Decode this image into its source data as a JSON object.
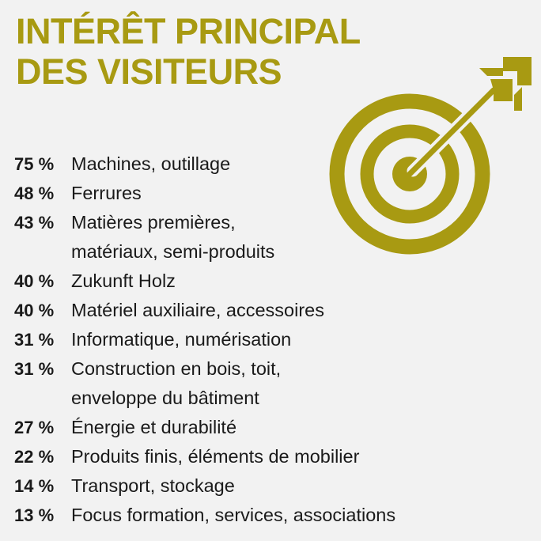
{
  "title": {
    "lines": [
      "INTÉRÊT PRINCIPAL",
      "DES VISITEURS"
    ],
    "color": "#a89a12"
  },
  "icon": "target-arrow-icon",
  "accent_color": "#a89a12",
  "chart_data": {
    "type": "table",
    "title": "INTÉRÊT PRINCIPAL DES VISITEURS",
    "unit": "%",
    "rows": [
      {
        "value": 75,
        "pct_label": "75 %",
        "lines": [
          "Machines, outillage"
        ]
      },
      {
        "value": 48,
        "pct_label": "48 %",
        "lines": [
          "Ferrures"
        ]
      },
      {
        "value": 43,
        "pct_label": "43 %",
        "lines": [
          "Matières premières,",
          "matériaux, semi-produits"
        ]
      },
      {
        "value": 40,
        "pct_label": "40 %",
        "lines": [
          "Zukunft Holz"
        ]
      },
      {
        "value": 40,
        "pct_label": "40 %",
        "lines": [
          "Matériel auxiliaire, accessoires"
        ]
      },
      {
        "value": 31,
        "pct_label": "31 %",
        "lines": [
          "Informatique, numérisation"
        ]
      },
      {
        "value": 31,
        "pct_label": "31 %",
        "lines": [
          "Construction en bois, toit,",
          "enveloppe du bâtiment"
        ]
      },
      {
        "value": 27,
        "pct_label": "27 %",
        "lines": [
          "Énergie et durabilité"
        ]
      },
      {
        "value": 22,
        "pct_label": "22 %",
        "lines": [
          "Produits finis, éléments de mobilier"
        ]
      },
      {
        "value": 14,
        "pct_label": "14 %",
        "lines": [
          "Transport, stockage"
        ]
      },
      {
        "value": 13,
        "pct_label": "13 %",
        "lines": [
          "Focus formation, services, associations"
        ]
      }
    ]
  }
}
